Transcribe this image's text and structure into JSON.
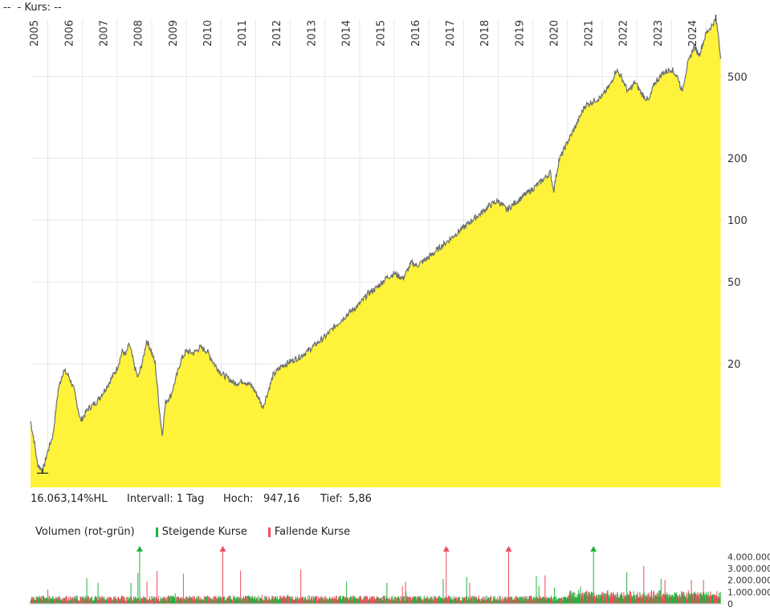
{
  "title": "--  - Kurs: --",
  "chart_data": [
    {
      "type": "area",
      "scale": "log",
      "year_labels": [
        "2005",
        "2006",
        "2007",
        "2008",
        "2009",
        "2010",
        "2011",
        "2012",
        "2013",
        "2014",
        "2015",
        "2016",
        "2017",
        "2018",
        "2019",
        "2020",
        "2021",
        "2022",
        "2023",
        "2024"
      ],
      "y_ticks": [
        {
          "value": 500,
          "label": "500"
        },
        {
          "value": 200,
          "label": "200"
        },
        {
          "value": 100,
          "label": "100"
        },
        {
          "value": 50,
          "label": "50"
        },
        {
          "value": 20,
          "label": "20"
        }
      ],
      "ylim": [
        5.86,
        947.16
      ],
      "x_range": [
        2005.0,
        2024.92
      ],
      "points": [
        [
          2005.0,
          10.5
        ],
        [
          2005.1,
          8.5
        ],
        [
          2005.2,
          6.5
        ],
        [
          2005.35,
          6.0
        ],
        [
          2005.5,
          7.5
        ],
        [
          2005.65,
          9.0
        ],
        [
          2005.8,
          15.0
        ],
        [
          2005.95,
          18.5
        ],
        [
          2006.1,
          17.5
        ],
        [
          2006.25,
          15.0
        ],
        [
          2006.45,
          10.5
        ],
        [
          2006.65,
          12.0
        ],
        [
          2006.9,
          13.0
        ],
        [
          2007.1,
          14.5
        ],
        [
          2007.3,
          16.5
        ],
        [
          2007.5,
          19.0
        ],
        [
          2007.65,
          23.0
        ],
        [
          2007.75,
          22.0
        ],
        [
          2007.85,
          25.0
        ],
        [
          2008.0,
          19.5
        ],
        [
          2008.1,
          17.0
        ],
        [
          2008.25,
          21.0
        ],
        [
          2008.35,
          26.0
        ],
        [
          2008.45,
          24.0
        ],
        [
          2008.6,
          20.0
        ],
        [
          2008.72,
          12.0
        ],
        [
          2008.8,
          9.0
        ],
        [
          2008.9,
          13.0
        ],
        [
          2009.05,
          14.0
        ],
        [
          2009.2,
          17.0
        ],
        [
          2009.35,
          21.0
        ],
        [
          2009.5,
          23.0
        ],
        [
          2009.7,
          22.5
        ],
        [
          2009.9,
          24.0
        ],
        [
          2010.1,
          23.0
        ],
        [
          2010.3,
          20.0
        ],
        [
          2010.5,
          18.0
        ],
        [
          2010.7,
          17.0
        ],
        [
          2010.9,
          16.0
        ],
        [
          2011.15,
          16.5
        ],
        [
          2011.4,
          15.5
        ],
        [
          2011.6,
          13.5
        ],
        [
          2011.7,
          12.2
        ],
        [
          2011.85,
          14.5
        ],
        [
          2012.0,
          17.5
        ],
        [
          2012.25,
          19.5
        ],
        [
          2012.5,
          20.5
        ],
        [
          2012.75,
          21.5
        ],
        [
          2013.0,
          23.0
        ],
        [
          2013.25,
          25.0
        ],
        [
          2013.5,
          27.0
        ],
        [
          2013.75,
          30.0
        ],
        [
          2014.0,
          33.0
        ],
        [
          2014.25,
          36.0
        ],
        [
          2014.5,
          39.0
        ],
        [
          2014.75,
          44.0
        ],
        [
          2015.0,
          47.0
        ],
        [
          2015.25,
          52.0
        ],
        [
          2015.5,
          55.0
        ],
        [
          2015.75,
          52.0
        ],
        [
          2016.0,
          62.0
        ],
        [
          2016.15,
          60.0
        ],
        [
          2016.5,
          66.0
        ],
        [
          2016.75,
          72.0
        ],
        [
          2017.0,
          78.0
        ],
        [
          2017.25,
          85.0
        ],
        [
          2017.5,
          92.0
        ],
        [
          2017.75,
          100.0
        ],
        [
          2018.0,
          108.0
        ],
        [
          2018.25,
          118.0
        ],
        [
          2018.5,
          124.0
        ],
        [
          2018.75,
          112.0
        ],
        [
          2019.0,
          122.0
        ],
        [
          2019.25,
          132.0
        ],
        [
          2019.5,
          142.0
        ],
        [
          2019.75,
          155.0
        ],
        [
          2020.0,
          170.0
        ],
        [
          2020.1,
          140.0
        ],
        [
          2020.25,
          195.0
        ],
        [
          2020.5,
          240.0
        ],
        [
          2020.75,
          290.0
        ],
        [
          2021.0,
          360.0
        ],
        [
          2021.25,
          380.0
        ],
        [
          2021.5,
          400.0
        ],
        [
          2021.75,
          460.0
        ],
        [
          2021.9,
          540.0
        ],
        [
          2022.05,
          500.0
        ],
        [
          2022.25,
          420.0
        ],
        [
          2022.45,
          470.0
        ],
        [
          2022.65,
          410.0
        ],
        [
          2022.85,
          380.0
        ],
        [
          2023.0,
          460.0
        ],
        [
          2023.25,
          520.0
        ],
        [
          2023.5,
          545.0
        ],
        [
          2023.7,
          490.0
        ],
        [
          2023.8,
          420.0
        ],
        [
          2023.95,
          560.0
        ],
        [
          2024.15,
          700.0
        ],
        [
          2024.3,
          640.0
        ],
        [
          2024.5,
          810.0
        ],
        [
          2024.7,
          905.0
        ],
        [
          2024.78,
          947.16
        ],
        [
          2024.86,
          780.0
        ],
        [
          2024.92,
          610.0
        ]
      ]
    },
    {
      "type": "bar",
      "y_ticks": [
        {
          "value": 4000000,
          "label": "4.000.000"
        },
        {
          "value": 3000000,
          "label": "3.000.000"
        },
        {
          "value": 2000000,
          "label": "2.000.000"
        },
        {
          "value": 1000000,
          "label": "1.000.000"
        },
        {
          "value": 0,
          "label": "0"
        }
      ],
      "ylim": [
        0,
        4500000
      ],
      "bars_per_year": 10,
      "spikes": [
        {
          "x": 2008.15,
          "value": 4300000,
          "dir": "up"
        },
        {
          "x": 2010.55,
          "value": 4300000,
          "dir": "down"
        },
        {
          "x": 2017.0,
          "value": 4300000,
          "dir": "down"
        },
        {
          "x": 2018.8,
          "value": 4300000,
          "dir": "down"
        },
        {
          "x": 2021.25,
          "value": 4300000,
          "dir": "up"
        }
      ]
    }
  ],
  "colors": {
    "area_fill": "#fff23a",
    "line": "#6b6f72",
    "grid": "#e7e7e7",
    "up": "#1fb23a",
    "down": "#ee4d61"
  },
  "stats": {
    "change": "16.063,14%HL",
    "interval": "Intervall: 1 Tag",
    "high_label": "Hoch:",
    "high_value": "947,16",
    "low_label": "Tief:",
    "low_value": "5,86"
  },
  "legend": {
    "title": "Volumen (rot-grün)",
    "up_label": "Steigende Kurse",
    "down_label": "Fallende Kurse"
  }
}
